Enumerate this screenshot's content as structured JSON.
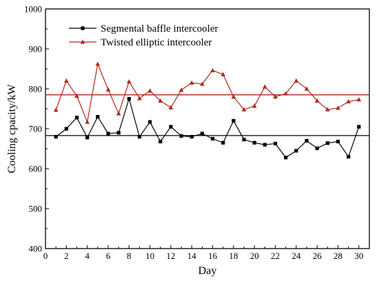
{
  "chart_data": {
    "type": "line",
    "xlabel": "Day",
    "ylabel": "Cooling cpacity/kW",
    "xlim": [
      0,
      31
    ],
    "ylim": [
      400,
      1000
    ],
    "xticks": [
      0,
      2,
      4,
      6,
      8,
      10,
      12,
      14,
      16,
      18,
      20,
      22,
      24,
      26,
      28,
      30
    ],
    "yticks": [
      400,
      500,
      600,
      700,
      800,
      900,
      1000
    ],
    "grid": false,
    "legend_position": "top-center",
    "x": [
      1,
      2,
      3,
      4,
      5,
      6,
      7,
      8,
      9,
      10,
      11,
      12,
      13,
      14,
      15,
      16,
      17,
      18,
      19,
      20,
      21,
      22,
      23,
      24,
      25,
      26,
      27,
      28,
      29,
      30
    ],
    "series": [
      {
        "name": "Segmental baffle intercooler",
        "color": "#000000",
        "marker": "square",
        "mean": 683,
        "values": [
          680,
          700,
          728,
          678,
          730,
          688,
          690,
          775,
          680,
          717,
          668,
          705,
          682,
          680,
          688,
          675,
          665,
          720,
          673,
          665,
          660,
          663,
          628,
          645,
          670,
          651,
          664,
          668,
          630,
          705
        ]
      },
      {
        "name": "Twisted elliptic intercooler",
        "color": "#b0281a",
        "marker": "triangle",
        "mean": 785,
        "values": [
          747,
          820,
          782,
          717,
          862,
          798,
          738,
          818,
          776,
          795,
          770,
          753,
          797,
          815,
          812,
          846,
          836,
          780,
          748,
          757,
          805,
          780,
          788,
          820,
          800,
          770,
          748,
          752,
          768,
          773
        ]
      }
    ]
  }
}
